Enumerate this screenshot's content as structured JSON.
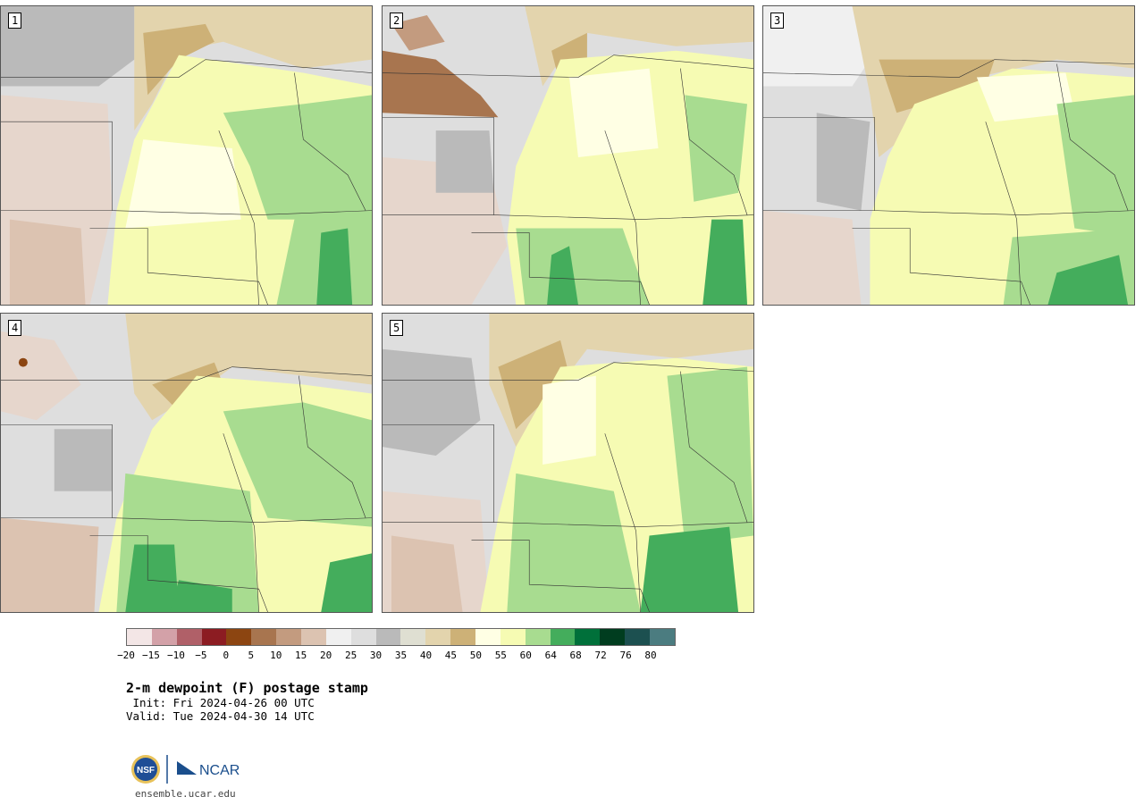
{
  "panels": [
    {
      "num": "1"
    },
    {
      "num": "2"
    },
    {
      "num": "3"
    },
    {
      "num": "4"
    },
    {
      "num": "5"
    }
  ],
  "colorbar": {
    "colors": [
      "#f3e6e6",
      "#d3a1a8",
      "#b06068",
      "#8c1c22",
      "#8c4511",
      "#a8754f",
      "#c39b7f",
      "#dcc3b1",
      "#f0f0f0",
      "#dedede",
      "#bababa",
      "#dfdfd2",
      "#e3d4ad",
      "#cdb177",
      "#ffffe4",
      "#f6fbb3",
      "#a8dc90",
      "#44ad5c",
      "#00703a",
      "#003d1f",
      "#1c5050",
      "#4b7c80"
    ],
    "labels": [
      "−20",
      "−15",
      "−10",
      "−5",
      "0",
      "5",
      "10",
      "15",
      "20",
      "25",
      "30",
      "35",
      "40",
      "45",
      "50",
      "55",
      "60",
      "64",
      "68",
      "72",
      "76",
      "80"
    ]
  },
  "title": "2-m dewpoint (F) postage stamp",
  "init": " Init: Fri 2024-04-26 00 UTC",
  "valid": "Valid: Tue 2024-04-30 14 UTC",
  "logo": {
    "left": "NSF",
    "right": "NCAR",
    "nsf_color": "#1f4e96",
    "ncar_color": "#1a4e8c"
  },
  "url": "ensemble.ucar.edu"
}
